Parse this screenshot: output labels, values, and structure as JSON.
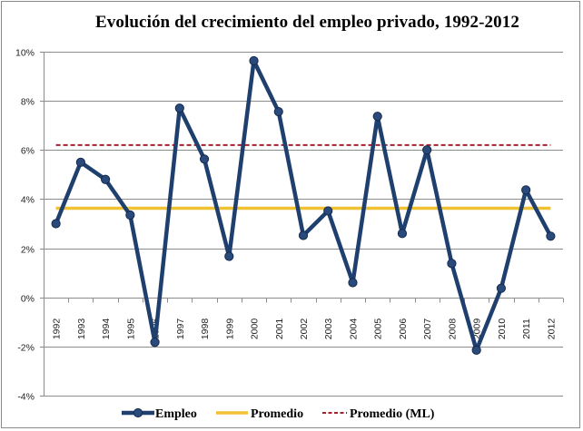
{
  "chart_data": {
    "type": "line",
    "title": "Evolución  del crecimiento  del empleo privado,  1992-2012",
    "xlabel": "",
    "ylabel": "",
    "categories": [
      "1992",
      "1993",
      "1994",
      "1995",
      "1996",
      "1997",
      "1998",
      "1999",
      "2000",
      "2001",
      "2002",
      "2003",
      "2004",
      "2005",
      "2006",
      "2007",
      "2008",
      "2009",
      "2010",
      "2011",
      "2012"
    ],
    "ylim": [
      -4,
      10
    ],
    "yticks": [
      -4,
      -2,
      0,
      2,
      4,
      6,
      8,
      10
    ],
    "ytick_labels": [
      "-4%",
      "-2%",
      "0%",
      "2%",
      "4%",
      "6%",
      "8%",
      "10%"
    ],
    "grid": true,
    "legend_position": "bottom",
    "series": [
      {
        "name": "Empleo",
        "style": "line-with-markers",
        "color": "#1f3f6e",
        "values": [
          3.0,
          5.5,
          4.8,
          3.35,
          -1.83,
          7.7,
          5.63,
          1.67,
          9.63,
          7.56,
          2.52,
          3.52,
          0.6,
          7.37,
          2.6,
          6.0,
          1.38,
          -2.15,
          0.37,
          4.37,
          2.49
        ]
      },
      {
        "name": "Promedio",
        "style": "solid",
        "color": "#f0c132",
        "values": [
          3.63,
          3.63,
          3.63,
          3.63,
          3.63,
          3.63,
          3.63,
          3.63,
          3.63,
          3.63,
          3.63,
          3.63,
          3.63,
          3.63,
          3.63,
          3.63,
          3.63,
          3.63,
          3.63,
          3.63,
          3.63
        ]
      },
      {
        "name": "Promedio (ML)",
        "style": "dashed",
        "color": "#a3222e",
        "values": [
          6.2,
          6.2,
          6.2,
          6.2,
          6.2,
          6.2,
          6.2,
          6.2,
          6.2,
          6.2,
          6.2,
          6.2,
          6.2,
          6.2,
          6.2,
          6.2,
          6.2,
          6.2,
          6.2,
          6.2,
          6.2
        ]
      }
    ]
  },
  "legend": {
    "items": [
      "Empleo",
      "Promedio",
      "Promedio (ML)"
    ]
  },
  "colors": {
    "gridline": "#8c8c8c",
    "axis": "#8c8c8c"
  }
}
